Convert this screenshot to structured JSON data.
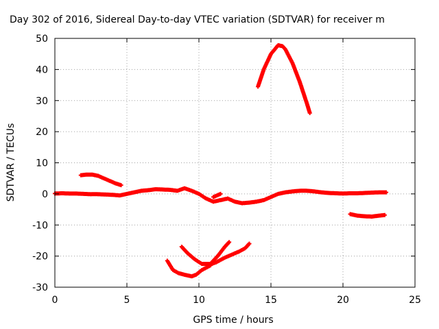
{
  "chart_data": {
    "type": "scatter",
    "title": "Day 302 of 2016, Sidereal Day-to-day VTEC variation (SDTVAR) for receiver m",
    "xlabel": "GPS time / hours",
    "ylabel": "SDTVAR / TECUs",
    "xlim": [
      0,
      25
    ],
    "ylim": [
      -30,
      50
    ],
    "xticks": [
      "0",
      "5",
      "10",
      "15",
      "20",
      "25"
    ],
    "yticks": [
      "-30",
      "-20",
      "-10",
      "0",
      "10",
      "20",
      "30",
      "40",
      "50"
    ],
    "grid": true,
    "legend": "none",
    "marker": "plus",
    "series_color": "#ff0000",
    "series": [
      {
        "x": [
          0.0,
          0.5,
          1.0,
          1.5,
          2.0,
          2.5,
          3.0,
          3.5,
          4.0,
          4.5,
          5.0,
          5.5,
          6.0,
          6.5,
          7.0,
          7.5,
          8.0,
          8.5,
          9.0,
          9.5,
          10.0,
          10.5,
          11.0,
          11.5,
          12.0,
          12.5,
          13.0,
          13.5,
          14.0,
          14.5,
          15.0,
          15.5,
          16.0,
          16.5,
          17.0,
          17.5,
          18.0,
          18.5,
          19.0,
          19.5,
          20.0,
          20.5,
          21.0,
          21.5,
          22.0,
          22.5,
          23.0
        ],
        "y": [
          0.1,
          0.2,
          0.1,
          0.1,
          0.0,
          -0.1,
          -0.1,
          -0.2,
          -0.3,
          -0.5,
          0.0,
          0.5,
          1.0,
          1.2,
          1.5,
          1.4,
          1.3,
          1.0,
          1.8,
          1.0,
          0.0,
          -1.5,
          -2.5,
          -2.0,
          -1.5,
          -2.5,
          -3.0,
          -2.8,
          -2.5,
          -2.0,
          -1.0,
          0.0,
          0.5,
          0.8,
          1.0,
          1.0,
          0.8,
          0.5,
          0.3,
          0.2,
          0.1,
          0.2,
          0.2,
          0.3,
          0.4,
          0.5,
          0.5
        ]
      },
      {
        "x": [
          1.8,
          2.2,
          2.6,
          3.0,
          3.4,
          3.8,
          4.2,
          4.6
        ],
        "y": [
          6.0,
          6.2,
          6.2,
          5.8,
          5.0,
          4.2,
          3.4,
          2.8
        ]
      },
      {
        "x": [
          11.0,
          11.5
        ],
        "y": [
          -1.0,
          0.0
        ]
      },
      {
        "x": [
          14.1,
          14.5,
          15.0,
          15.5,
          15.8,
          16.0,
          16.5,
          17.0,
          17.5,
          17.7
        ],
        "y": [
          34.5,
          40.0,
          45.0,
          47.8,
          47.5,
          46.5,
          42.0,
          36.0,
          29.0,
          26.0
        ]
      },
      {
        "x": [
          20.5,
          21.0,
          21.5,
          22.0,
          22.5,
          22.9
        ],
        "y": [
          -6.5,
          -7.0,
          -7.2,
          -7.3,
          -7.0,
          -6.8
        ]
      },
      {
        "x": [
          7.8,
          8.2,
          8.6,
          9.0,
          9.5,
          9.8,
          10.2,
          10.8
        ],
        "y": [
          -21.5,
          -24.5,
          -25.5,
          -26.0,
          -26.5,
          -26.0,
          -24.5,
          -23.0
        ]
      },
      {
        "x": [
          8.8,
          9.2,
          9.7,
          10.2,
          10.8,
          11.3,
          11.8,
          12.1
        ],
        "y": [
          -17.0,
          -19.0,
          -21.0,
          -22.5,
          -22.5,
          -20.0,
          -17.0,
          -15.5
        ]
      },
      {
        "x": [
          10.6,
          11.2,
          11.8,
          12.3,
          12.8,
          13.2,
          13.5
        ],
        "y": [
          -23.0,
          -22.0,
          -20.5,
          -19.5,
          -18.5,
          -17.5,
          -16.0
        ]
      }
    ]
  }
}
